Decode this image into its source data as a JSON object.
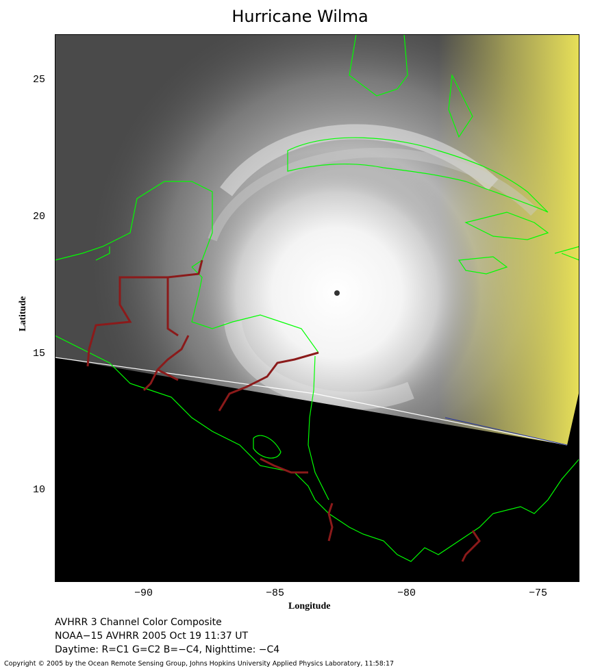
{
  "title": "Hurricane Wilma",
  "axes": {
    "xlabel": "Longitude",
    "ylabel": "Latitude",
    "xticks": [
      "−90",
      "−85",
      "−80",
      "−75"
    ],
    "yticks": [
      "25",
      "20",
      "15",
      "10"
    ]
  },
  "caption": {
    "line1": "AVHRR 3 Channel Color Composite",
    "line2": "NOAA−15 AVHRR 2005 Oct 19 11:37 UT",
    "line3": "Daytime: R=C1 G=C2 B=−C4, Nighttime: −C4"
  },
  "copyright": "Copyright © 2005 by the Ocean Remote Sensing Group, Johns Hopkins University Applied Physics Laboratory, 11:58:17",
  "colors": {
    "coastline": "#00ff00",
    "borders": "#8b1a1a",
    "night": "#000000",
    "day_yellow": "#e8e060"
  }
}
